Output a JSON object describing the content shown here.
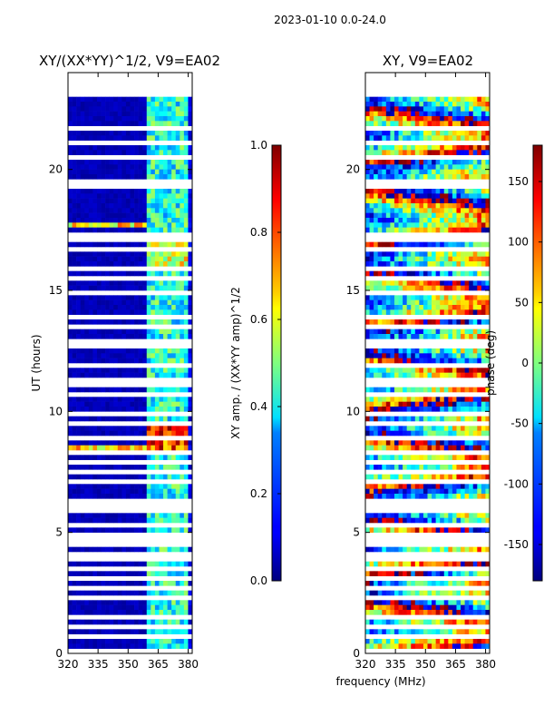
{
  "suptitle": "2023-01-10 0.0-24.0",
  "chart_data": [
    {
      "type": "heatmap",
      "title": "XY/(XX*YY)^1/2, V9=EA02",
      "xlabel": "",
      "ylabel": "UT (hours)",
      "xlim": [
        320,
        382
      ],
      "ylim": [
        0,
        24
      ],
      "xticks": [
        "320",
        "335",
        "350",
        "365",
        "380"
      ],
      "yticks": [
        "0",
        "5",
        "10",
        "15",
        "20"
      ],
      "colorbar": {
        "label": "XY amp. / (XX*YY amp)^1/2",
        "range": [
          0.0,
          1.0
        ],
        "ticks": [
          "0.0",
          "0.2",
          "0.4",
          "0.6",
          "0.8",
          "1.0"
        ]
      },
      "description_values": "mostly near 0 below 359 MHz; band of higher values (~0.3-0.6) at 359-378 MHz; peaks near 1.0 around 8.5-9.5 UT"
    },
    {
      "type": "heatmap",
      "title": "XY, V9=EA02",
      "xlabel": "frequency (MHz)",
      "ylabel": "",
      "xlim": [
        320,
        382
      ],
      "ylim": [
        0,
        24
      ],
      "xticks": [
        "320",
        "335",
        "350",
        "365",
        "380"
      ],
      "yticks": [
        "0",
        "5",
        "10",
        "15",
        "20"
      ],
      "colorbar": {
        "label": "phase (deg)",
        "range": [
          -180,
          180
        ],
        "ticks": [
          "-150",
          "-100",
          "-50",
          "0",
          "50",
          "100",
          "150"
        ]
      }
    }
  ],
  "colors": {
    "jet_low": "#00007f",
    "jet_mid": "#7fff7f",
    "jet_high": "#7f0000",
    "gap": "#ffffff"
  }
}
